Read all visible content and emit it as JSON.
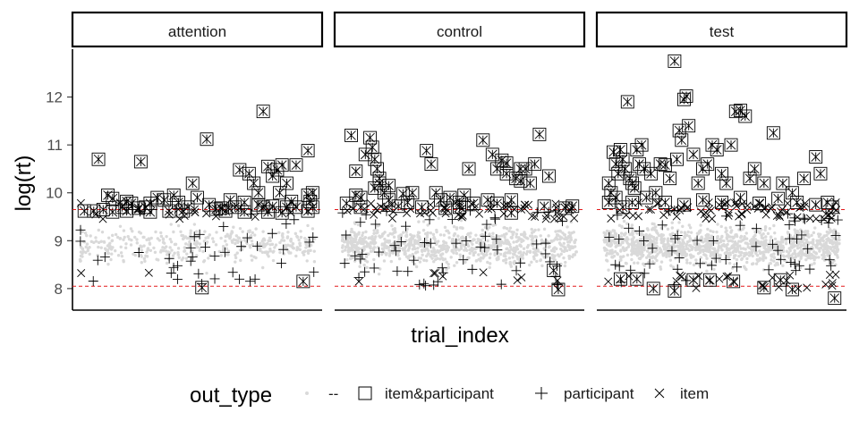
{
  "chart_data": {
    "type": "scatter",
    "x": {
      "label": "trial_index"
    },
    "y": {
      "label": "log(rt)",
      "range": [
        7.55,
        13.0
      ],
      "ticks": [
        8,
        9,
        10,
        11,
        12
      ]
    },
    "panels": [
      "attention",
      "control",
      "test"
    ],
    "reference_lines": [
      {
        "y": 8.05,
        "color": "#e31a1c",
        "style": "dashed"
      },
      {
        "y": 9.65,
        "color": "#e31a1c",
        "style": "dashed"
      }
    ],
    "legend": {
      "title": "out_type",
      "position": "bottom",
      "entries": [
        {
          "label": "--",
          "shape": "point",
          "color": "#d9d9d9"
        },
        {
          "label": "item&participant",
          "shape": "square-asterisk",
          "color": "#000000"
        },
        {
          "label": "participant",
          "shape": "plus",
          "color": "#000000"
        },
        {
          "label": "item",
          "shape": "cross",
          "color": "#000000"
        }
      ]
    },
    "series_summary": {
      "--": {
        "description": "bulk of normal trials",
        "y_range": [
          8.1,
          9.8
        ],
        "approx_points_per_panel": [
          400,
          900,
          1200
        ]
      },
      "item&participant": {
        "attention": [
          [
            0.02,
            9.62
          ],
          [
            0.08,
            10.7
          ],
          [
            0.1,
            9.65
          ],
          [
            0.12,
            9.95
          ],
          [
            0.14,
            9.88
          ],
          [
            0.18,
            9.7
          ],
          [
            0.2,
            9.82
          ],
          [
            0.22,
            9.78
          ],
          [
            0.26,
            10.65
          ],
          [
            0.28,
            9.7
          ],
          [
            0.3,
            9.78
          ],
          [
            0.33,
            9.9
          ],
          [
            0.36,
            9.85
          ],
          [
            0.4,
            9.95
          ],
          [
            0.42,
            9.8
          ],
          [
            0.46,
            9.7
          ],
          [
            0.48,
            10.2
          ],
          [
            0.5,
            9.9
          ],
          [
            0.52,
            8.02
          ],
          [
            0.54,
            11.12
          ],
          [
            0.55,
            9.75
          ],
          [
            0.6,
            9.68
          ],
          [
            0.64,
            9.85
          ],
          [
            0.68,
            10.48
          ],
          [
            0.7,
            9.8
          ],
          [
            0.72,
            10.4
          ],
          [
            0.74,
            10.2
          ],
          [
            0.76,
            10.0
          ],
          [
            0.78,
            11.7
          ],
          [
            0.8,
            10.55
          ],
          [
            0.82,
            10.35
          ],
          [
            0.84,
            10.48
          ],
          [
            0.86,
            10.58
          ],
          [
            0.88,
            10.2
          ],
          [
            0.9,
            9.82
          ],
          [
            0.92,
            10.58
          ],
          [
            0.95,
            8.15
          ],
          [
            0.2,
            9.62
          ],
          [
            0.76,
            9.75
          ],
          [
            0.78,
            9.7
          ],
          [
            0.8,
            9.6
          ],
          [
            0.82,
            9.72
          ],
          [
            0.85,
            10.0
          ],
          [
            0.88,
            9.7
          ],
          [
            0.3,
            9.6
          ],
          [
            0.38,
            9.62
          ],
          [
            0.7,
            9.6
          ],
          [
            0.97,
            9.62
          ],
          [
            0.92,
            9.7
          ],
          [
            0.86,
            9.58
          ],
          [
            0.25,
            9.68
          ],
          [
            0.14,
            9.6
          ],
          [
            0.06,
            9.62
          ],
          [
            0.44,
            9.62
          ],
          [
            0.58,
            9.66
          ],
          [
            0.62,
            9.62
          ],
          [
            0.66,
            9.7
          ],
          [
            0.98,
            9.82
          ],
          [
            0.99,
            10.0
          ],
          [
            0.97,
            9.95
          ],
          [
            0.99,
            9.7
          ],
          [
            0.97,
            10.88
          ]
        ],
        "control": [
          [
            0.02,
            9.78
          ],
          [
            0.04,
            11.2
          ],
          [
            0.06,
            10.45
          ],
          [
            0.08,
            9.9
          ],
          [
            0.1,
            10.8
          ],
          [
            0.12,
            11.15
          ],
          [
            0.13,
            10.95
          ],
          [
            0.14,
            10.7
          ],
          [
            0.15,
            10.5
          ],
          [
            0.16,
            10.2
          ],
          [
            0.18,
            10.0
          ],
          [
            0.2,
            9.85
          ],
          [
            0.24,
            9.72
          ],
          [
            0.26,
            9.98
          ],
          [
            0.28,
            9.8
          ],
          [
            0.3,
            10.0
          ],
          [
            0.34,
            9.7
          ],
          [
            0.36,
            10.88
          ],
          [
            0.38,
            10.6
          ],
          [
            0.42,
            9.85
          ],
          [
            0.44,
            9.68
          ],
          [
            0.46,
            9.9
          ],
          [
            0.5,
            9.7
          ],
          [
            0.54,
            10.5
          ],
          [
            0.56,
            9.78
          ],
          [
            0.6,
            11.1
          ],
          [
            0.62,
            9.85
          ],
          [
            0.64,
            10.8
          ],
          [
            0.66,
            10.5
          ],
          [
            0.68,
            10.68
          ],
          [
            0.7,
            10.62
          ],
          [
            0.72,
            9.85
          ],
          [
            0.74,
            10.3
          ],
          [
            0.76,
            10.25
          ],
          [
            0.78,
            10.5
          ],
          [
            0.8,
            10.2
          ],
          [
            0.82,
            10.6
          ],
          [
            0.84,
            11.22
          ],
          [
            0.86,
            9.72
          ],
          [
            0.88,
            10.35
          ],
          [
            0.9,
            8.38
          ],
          [
            0.92,
            7.98
          ],
          [
            0.95,
            9.68
          ],
          [
            0.98,
            9.72
          ],
          [
            0.4,
            10.0
          ],
          [
            0.52,
            9.95
          ],
          [
            0.66,
            9.78
          ],
          [
            0.72,
            9.58
          ],
          [
            0.08,
            9.7
          ],
          [
            0.06,
            9.95
          ],
          [
            0.2,
            10.15
          ],
          [
            0.16,
            10.3
          ],
          [
            0.14,
            10.1
          ],
          [
            0.5,
            9.8
          ],
          [
            0.7,
            10.4
          ],
          [
            0.76,
            10.5
          ]
        ],
        "test": [
          [
            0.02,
            10.2
          ],
          [
            0.03,
            10.0
          ],
          [
            0.04,
            10.85
          ],
          [
            0.05,
            10.6
          ],
          [
            0.06,
            10.4
          ],
          [
            0.07,
            10.9
          ],
          [
            0.08,
            10.7
          ],
          [
            0.09,
            10.5
          ],
          [
            0.1,
            11.9
          ],
          [
            0.11,
            10.3
          ],
          [
            0.12,
            10.2
          ],
          [
            0.13,
            10.1
          ],
          [
            0.14,
            10.9
          ],
          [
            0.15,
            10.6
          ],
          [
            0.16,
            11.0
          ],
          [
            0.17,
            10.5
          ],
          [
            0.2,
            10.4
          ],
          [
            0.22,
            10.0
          ],
          [
            0.24,
            10.6
          ],
          [
            0.26,
            10.58
          ],
          [
            0.28,
            10.3
          ],
          [
            0.3,
            12.75
          ],
          [
            0.31,
            10.7
          ],
          [
            0.32,
            11.3
          ],
          [
            0.33,
            11.1
          ],
          [
            0.34,
            11.95
          ],
          [
            0.35,
            12.02
          ],
          [
            0.36,
            11.4
          ],
          [
            0.38,
            10.8
          ],
          [
            0.4,
            10.2
          ],
          [
            0.42,
            10.5
          ],
          [
            0.44,
            10.6
          ],
          [
            0.46,
            11.0
          ],
          [
            0.48,
            10.9
          ],
          [
            0.5,
            10.4
          ],
          [
            0.52,
            10.2
          ],
          [
            0.54,
            11.0
          ],
          [
            0.56,
            11.7
          ],
          [
            0.58,
            11.72
          ],
          [
            0.6,
            11.6
          ],
          [
            0.62,
            10.3
          ],
          [
            0.64,
            10.5
          ],
          [
            0.68,
            10.2
          ],
          [
            0.72,
            11.25
          ],
          [
            0.76,
            10.2
          ],
          [
            0.8,
            10.0
          ],
          [
            0.85,
            10.3
          ],
          [
            0.9,
            10.75
          ],
          [
            0.92,
            10.4
          ],
          [
            0.95,
            9.8
          ],
          [
            0.98,
            7.8
          ],
          [
            0.07,
            8.2
          ],
          [
            0.14,
            8.2
          ],
          [
            0.21,
            8.0
          ],
          [
            0.3,
            7.95
          ],
          [
            0.38,
            8.18
          ],
          [
            0.45,
            8.18
          ],
          [
            0.55,
            8.15
          ],
          [
            0.68,
            8.02
          ],
          [
            0.75,
            8.18
          ],
          [
            0.8,
            7.98
          ],
          [
            0.02,
            9.8
          ],
          [
            0.05,
            9.9
          ],
          [
            0.08,
            9.7
          ],
          [
            0.12,
            9.8
          ],
          [
            0.18,
            9.9
          ],
          [
            0.26,
            9.8
          ],
          [
            0.34,
            9.75
          ],
          [
            0.42,
            9.85
          ],
          [
            0.5,
            9.8
          ],
          [
            0.58,
            9.9
          ],
          [
            0.66,
            9.78
          ],
          [
            0.74,
            9.88
          ],
          [
            0.82,
            9.8
          ],
          [
            0.9,
            9.75
          ],
          [
            0.97,
            9.7
          ]
        ]
      },
      "participant": {
        "description": "plus markers scattered across 8.0–9.8",
        "y_range": [
          8.0,
          9.8
        ]
      },
      "item": {
        "description": "cross markers along 9.5–9.8 band and some near 8.0",
        "y_range": [
          7.95,
          10.0
        ]
      }
    }
  }
}
